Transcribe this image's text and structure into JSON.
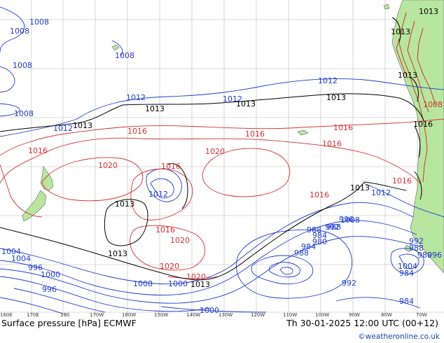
{
  "footer": {
    "title": "Surface pressure [hPa] ECMWF",
    "valid_time": "Th 30-01-2025 12:00 UTC (00+12)",
    "credit": "©weatheronline.co.uk"
  },
  "longitude_ticks": [
    "160E",
    "170E",
    "180",
    "170W",
    "160W",
    "150W",
    "140W",
    "130W",
    "120W",
    "110W",
    "100W",
    "90W",
    "80W",
    "70W"
  ],
  "isobar_labels": [
    {
      "text": "1008",
      "color": "blue"
    },
    {
      "text": "1008",
      "color": "blue"
    },
    {
      "text": "1008",
      "color": "blue"
    },
    {
      "text": "1008",
      "color": "blue"
    },
    {
      "text": "1008",
      "color": "blue"
    },
    {
      "text": "1012",
      "color": "blue"
    },
    {
      "text": "1012",
      "color": "blue"
    },
    {
      "text": "1012",
      "color": "blue"
    },
    {
      "text": "1012",
      "color": "blue"
    },
    {
      "text": "1013",
      "color": "black"
    },
    {
      "text": "1013",
      "color": "black"
    },
    {
      "text": "1013",
      "color": "black"
    },
    {
      "text": "1013",
      "color": "black"
    },
    {
      "text": "1013",
      "color": "black"
    },
    {
      "text": "1013",
      "color": "black"
    },
    {
      "text": "1013",
      "color": "black"
    },
    {
      "text": "1013",
      "color": "black"
    },
    {
      "text": "1013",
      "color": "black"
    },
    {
      "text": "1013",
      "color": "black"
    },
    {
      "text": "1013",
      "color": "black"
    },
    {
      "text": "1016",
      "color": "red"
    },
    {
      "text": "1016",
      "color": "red"
    },
    {
      "text": "1016",
      "color": "red"
    },
    {
      "text": "1016",
      "color": "red"
    },
    {
      "text": "1016",
      "color": "red"
    },
    {
      "text": "1016",
      "color": "red"
    },
    {
      "text": "1016",
      "color": "red"
    },
    {
      "text": "1016",
      "color": "red"
    },
    {
      "text": "1016",
      "color": "red"
    },
    {
      "text": "1016",
      "color": "red"
    },
    {
      "text": "1020",
      "color": "red"
    },
    {
      "text": "1020",
      "color": "red"
    },
    {
      "text": "1020",
      "color": "red"
    },
    {
      "text": "1020",
      "color": "red"
    },
    {
      "text": "1020",
      "color": "red"
    },
    {
      "text": "1008",
      "color": "blue"
    },
    {
      "text": "1008",
      "color": "blue"
    },
    {
      "text": "1012",
      "color": "blue"
    },
    {
      "text": "1012",
      "color": "blue"
    },
    {
      "text": "1000",
      "color": "blue"
    },
    {
      "text": "1004",
      "color": "blue"
    },
    {
      "text": "1004",
      "color": "blue"
    },
    {
      "text": "1000",
      "color": "blue"
    },
    {
      "text": "996",
      "color": "blue"
    },
    {
      "text": "992",
      "color": "blue"
    },
    {
      "text": "988",
      "color": "blue"
    },
    {
      "text": "984",
      "color": "blue"
    },
    {
      "text": "980",
      "color": "blue"
    },
    {
      "text": "984",
      "color": "blue"
    },
    {
      "text": "988",
      "color": "blue"
    },
    {
      "text": "992",
      "color": "blue"
    },
    {
      "text": "996",
      "color": "blue"
    },
    {
      "text": "1000",
      "color": "blue"
    },
    {
      "text": "996",
      "color": "blue"
    },
    {
      "text": "988",
      "color": "blue"
    },
    {
      "text": "992",
      "color": "blue"
    },
    {
      "text": "996",
      "color": "blue"
    },
    {
      "text": "988",
      "color": "blue"
    },
    {
      "text": "980",
      "color": "blue"
    },
    {
      "text": "984",
      "color": "blue"
    },
    {
      "text": "984",
      "color": "blue"
    },
    {
      "text": "1004",
      "color": "blue"
    },
    {
      "text": "1008",
      "color": "blue"
    }
  ],
  "colors": {
    "ocean": "#ffffff",
    "land": "#b8e6a0",
    "grid": "#bbbbbb",
    "isobar_low": "#1e3ccc",
    "isobar_high": "#d83030",
    "isobar_standard": "#000000",
    "terrain_contour": "#d01010"
  }
}
